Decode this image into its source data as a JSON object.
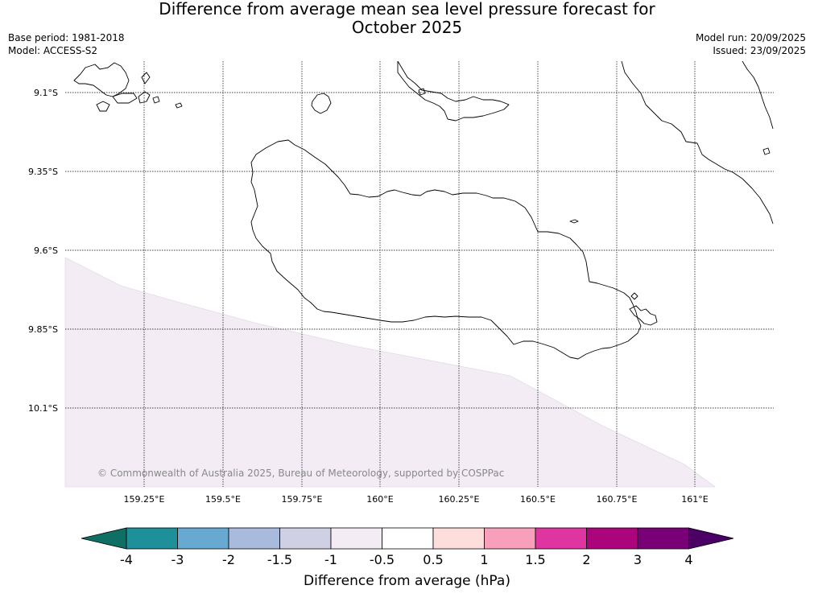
{
  "header": {
    "title_line1": "Difference from average mean sea level pressure forecast for",
    "title_line2": "October 2025",
    "base_period": "Base period: 1981-2018",
    "model": "Model: ACCESS-S2",
    "model_run": "Model run: 20/09/2025",
    "issued": "Issued: 23/09/2025"
  },
  "map": {
    "lon_labels": [
      "159.25°E",
      "159.5°E",
      "159.75°E",
      "160°E",
      "160.25°E",
      "160.5°E",
      "160.75°E",
      "161°E"
    ],
    "lat_labels": [
      "9.1°S",
      "9.35°S",
      "9.6°S",
      "9.85°S",
      "10.1°S"
    ],
    "copyright": "© Commonwealth of Australia 2025, Bureau of Meteorology, supported by COSPPac",
    "shaded_category": "-1 to -0.5",
    "shaded_color": "#f3ecf5"
  },
  "colorbar": {
    "label": "Difference from average (hPa)",
    "tick_labels": [
      "-4",
      "-3",
      "-2",
      "-1.5",
      "-1",
      "-0.5",
      "0.5",
      "1",
      "1.5",
      "2",
      "3",
      "4"
    ],
    "colors": [
      "#0e6f65",
      "#1e9099",
      "#68a9d2",
      "#a8bbdc",
      "#d0d0e5",
      "#f3ecf5",
      "#ffffff",
      "#fedddd",
      "#f8a0bb",
      "#de35a0",
      "#ac047d",
      "#790077",
      "#4a0065"
    ]
  }
}
